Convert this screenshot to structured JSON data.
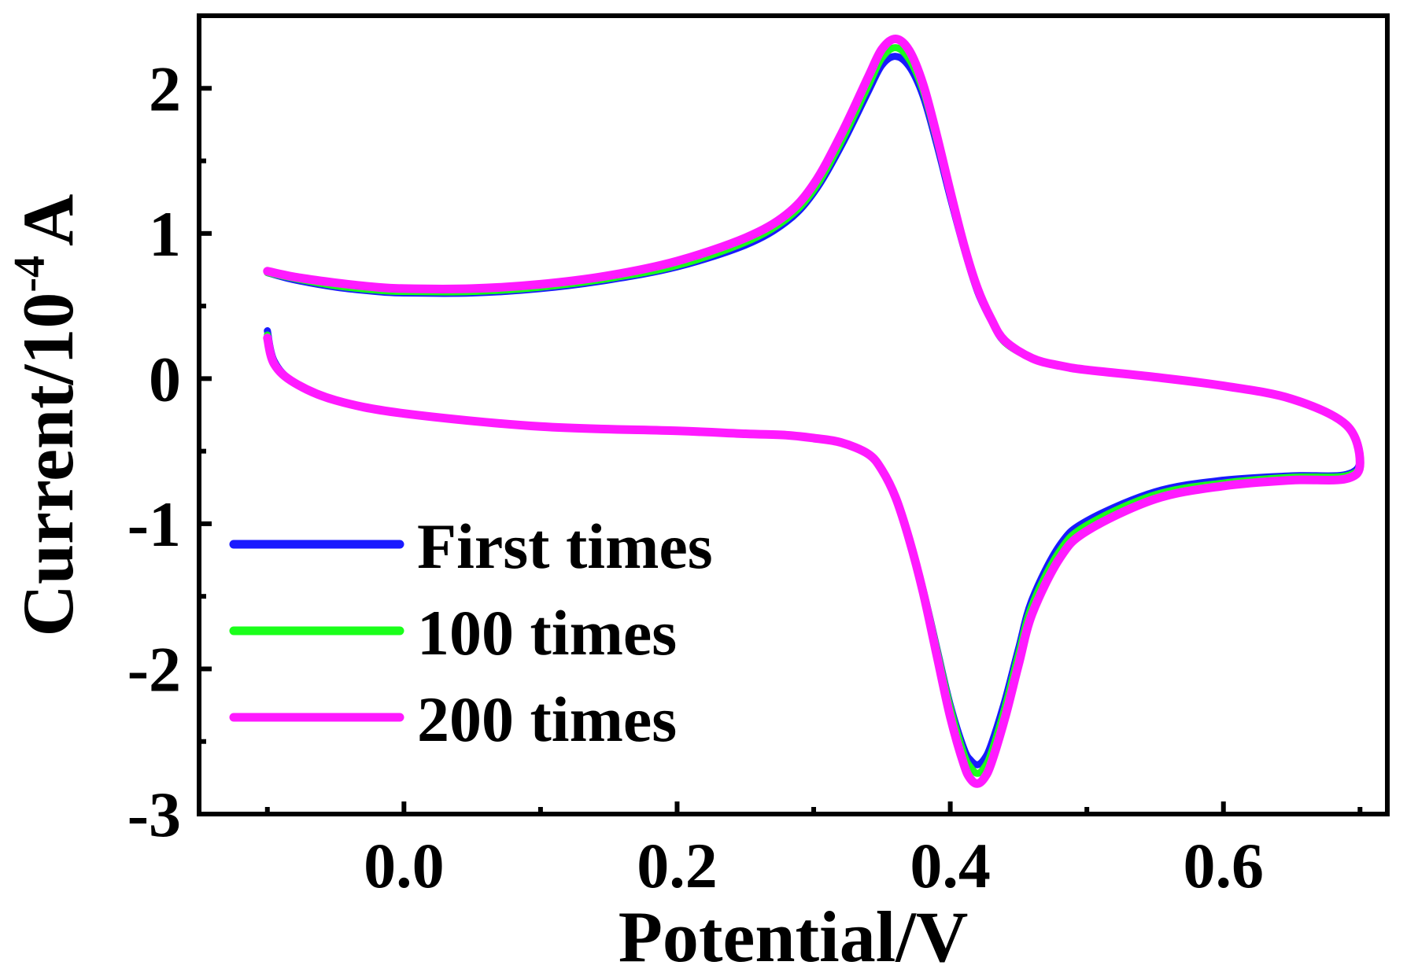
{
  "chart_data": {
    "type": "line",
    "title": "",
    "xlabel": "Potential/V",
    "ylabel": {
      "prefix": "Current/10",
      "exponent": "-4",
      "suffix": "A"
    },
    "xlim": [
      -0.15,
      0.72
    ],
    "ylim": [
      -3,
      2.5
    ],
    "x_ticks": [
      {
        "value": 0.0,
        "label": "0.0"
      },
      {
        "value": 0.2,
        "label": "0.2"
      },
      {
        "value": 0.4,
        "label": "0.4"
      },
      {
        "value": 0.6,
        "label": "0.6"
      }
    ],
    "x_minor_ticks": [
      -0.1,
      0.1,
      0.3,
      0.5,
      0.7
    ],
    "y_ticks": [
      {
        "value": 2,
        "label": "2"
      },
      {
        "value": 1,
        "label": "1"
      },
      {
        "value": 0,
        "label": "0"
      },
      {
        "value": -1,
        "label": "-1"
      },
      {
        "value": -2,
        "label": "-2"
      },
      {
        "value": -3,
        "label": "-3"
      }
    ],
    "y_minor_ticks": [
      1.5,
      0.5,
      -0.5,
      -1.5,
      -2.5
    ],
    "grid": false,
    "legend_position": "lower-left",
    "series": [
      {
        "name": "First times",
        "color": "#1a1aff",
        "anodic": {
          "x": [
            -0.1,
            -0.08,
            -0.05,
            -0.02,
            0.0,
            0.05,
            0.1,
            0.15,
            0.2,
            0.25,
            0.28,
            0.3,
            0.32,
            0.34,
            0.35,
            0.36,
            0.37,
            0.38,
            0.39,
            0.4,
            0.41,
            0.42,
            0.43,
            0.44,
            0.46,
            0.48,
            0.5,
            0.55,
            0.6,
            0.65,
            0.69,
            0.7
          ],
          "y": [
            0.73,
            0.68,
            0.63,
            0.6,
            0.59,
            0.59,
            0.62,
            0.68,
            0.77,
            0.92,
            1.08,
            1.28,
            1.6,
            1.98,
            2.16,
            2.22,
            2.15,
            1.95,
            1.62,
            1.25,
            0.9,
            0.6,
            0.4,
            0.25,
            0.14,
            0.09,
            0.06,
            0.01,
            -0.05,
            -0.14,
            -0.32,
            -0.55
          ]
        },
        "cathodic": {
          "x": [
            0.7,
            0.69,
            0.65,
            0.6,
            0.55,
            0.5,
            0.48,
            0.46,
            0.45,
            0.44,
            0.43,
            0.425,
            0.42,
            0.415,
            0.41,
            0.4,
            0.39,
            0.38,
            0.37,
            0.36,
            0.35,
            0.34,
            0.32,
            0.3,
            0.28,
            0.25,
            0.2,
            0.1,
            0.0,
            -0.05,
            -0.08,
            -0.095,
            -0.1
          ],
          "y": [
            -0.67,
            -0.66,
            -0.67,
            -0.7,
            -0.78,
            -0.98,
            -1.15,
            -1.52,
            -1.86,
            -2.22,
            -2.52,
            -2.62,
            -2.66,
            -2.63,
            -2.55,
            -2.25,
            -1.85,
            -1.45,
            -1.1,
            -0.82,
            -0.63,
            -0.52,
            -0.44,
            -0.41,
            -0.39,
            -0.38,
            -0.36,
            -0.33,
            -0.24,
            -0.15,
            -0.03,
            0.12,
            0.33
          ]
        }
      },
      {
        "name": "100 times",
        "color": "#1aff1a",
        "anodic": {
          "x": [
            -0.1,
            -0.08,
            -0.05,
            -0.02,
            0.0,
            0.05,
            0.1,
            0.15,
            0.2,
            0.25,
            0.28,
            0.3,
            0.32,
            0.34,
            0.35,
            0.36,
            0.37,
            0.38,
            0.39,
            0.4,
            0.41,
            0.42,
            0.43,
            0.44,
            0.46,
            0.48,
            0.5,
            0.55,
            0.6,
            0.65,
            0.69,
            0.7
          ],
          "y": [
            0.73,
            0.69,
            0.64,
            0.61,
            0.6,
            0.6,
            0.63,
            0.69,
            0.78,
            0.94,
            1.1,
            1.3,
            1.63,
            2.02,
            2.21,
            2.28,
            2.2,
            1.99,
            1.65,
            1.27,
            0.91,
            0.61,
            0.41,
            0.25,
            0.14,
            0.09,
            0.06,
            0.01,
            -0.05,
            -0.14,
            -0.32,
            -0.57
          ]
        },
        "cathodic": {
          "x": [
            0.7,
            0.69,
            0.65,
            0.6,
            0.55,
            0.5,
            0.48,
            0.46,
            0.45,
            0.44,
            0.43,
            0.425,
            0.42,
            0.415,
            0.41,
            0.4,
            0.39,
            0.38,
            0.37,
            0.36,
            0.35,
            0.34,
            0.32,
            0.3,
            0.28,
            0.25,
            0.2,
            0.1,
            0.0,
            -0.05,
            -0.08,
            -0.095,
            -0.1
          ],
          "y": [
            -0.68,
            -0.67,
            -0.68,
            -0.72,
            -0.8,
            -1.01,
            -1.19,
            -1.56,
            -1.9,
            -2.27,
            -2.58,
            -2.68,
            -2.72,
            -2.68,
            -2.59,
            -2.27,
            -1.86,
            -1.45,
            -1.1,
            -0.82,
            -0.63,
            -0.52,
            -0.44,
            -0.41,
            -0.39,
            -0.38,
            -0.36,
            -0.33,
            -0.24,
            -0.15,
            -0.03,
            0.11,
            0.3
          ]
        }
      },
      {
        "name": "200 times",
        "color": "#ff1aff",
        "anodic": {
          "x": [
            -0.1,
            -0.08,
            -0.05,
            -0.02,
            0.0,
            0.05,
            0.1,
            0.15,
            0.2,
            0.25,
            0.28,
            0.3,
            0.32,
            0.34,
            0.35,
            0.36,
            0.37,
            0.38,
            0.39,
            0.4,
            0.41,
            0.42,
            0.43,
            0.44,
            0.46,
            0.48,
            0.5,
            0.55,
            0.6,
            0.65,
            0.69,
            0.7
          ],
          "y": [
            0.74,
            0.7,
            0.66,
            0.63,
            0.62,
            0.62,
            0.65,
            0.71,
            0.81,
            0.97,
            1.13,
            1.34,
            1.68,
            2.08,
            2.27,
            2.34,
            2.26,
            2.03,
            1.68,
            1.29,
            0.92,
            0.62,
            0.41,
            0.26,
            0.14,
            0.09,
            0.06,
            0.01,
            -0.05,
            -0.14,
            -0.32,
            -0.58
          ]
        },
        "cathodic": {
          "x": [
            0.7,
            0.69,
            0.65,
            0.6,
            0.55,
            0.5,
            0.48,
            0.46,
            0.45,
            0.44,
            0.43,
            0.425,
            0.42,
            0.415,
            0.41,
            0.4,
            0.39,
            0.38,
            0.37,
            0.36,
            0.35,
            0.34,
            0.32,
            0.3,
            0.28,
            0.25,
            0.2,
            0.1,
            0.0,
            -0.05,
            -0.08,
            -0.095,
            -0.1
          ],
          "y": [
            -0.7,
            -0.69,
            -0.7,
            -0.74,
            -0.83,
            -1.05,
            -1.24,
            -1.62,
            -1.97,
            -2.34,
            -2.65,
            -2.75,
            -2.79,
            -2.76,
            -2.66,
            -2.33,
            -1.9,
            -1.47,
            -1.11,
            -0.82,
            -0.63,
            -0.52,
            -0.44,
            -0.41,
            -0.39,
            -0.38,
            -0.36,
            -0.33,
            -0.24,
            -0.15,
            -0.03,
            0.1,
            0.28
          ]
        }
      }
    ]
  }
}
